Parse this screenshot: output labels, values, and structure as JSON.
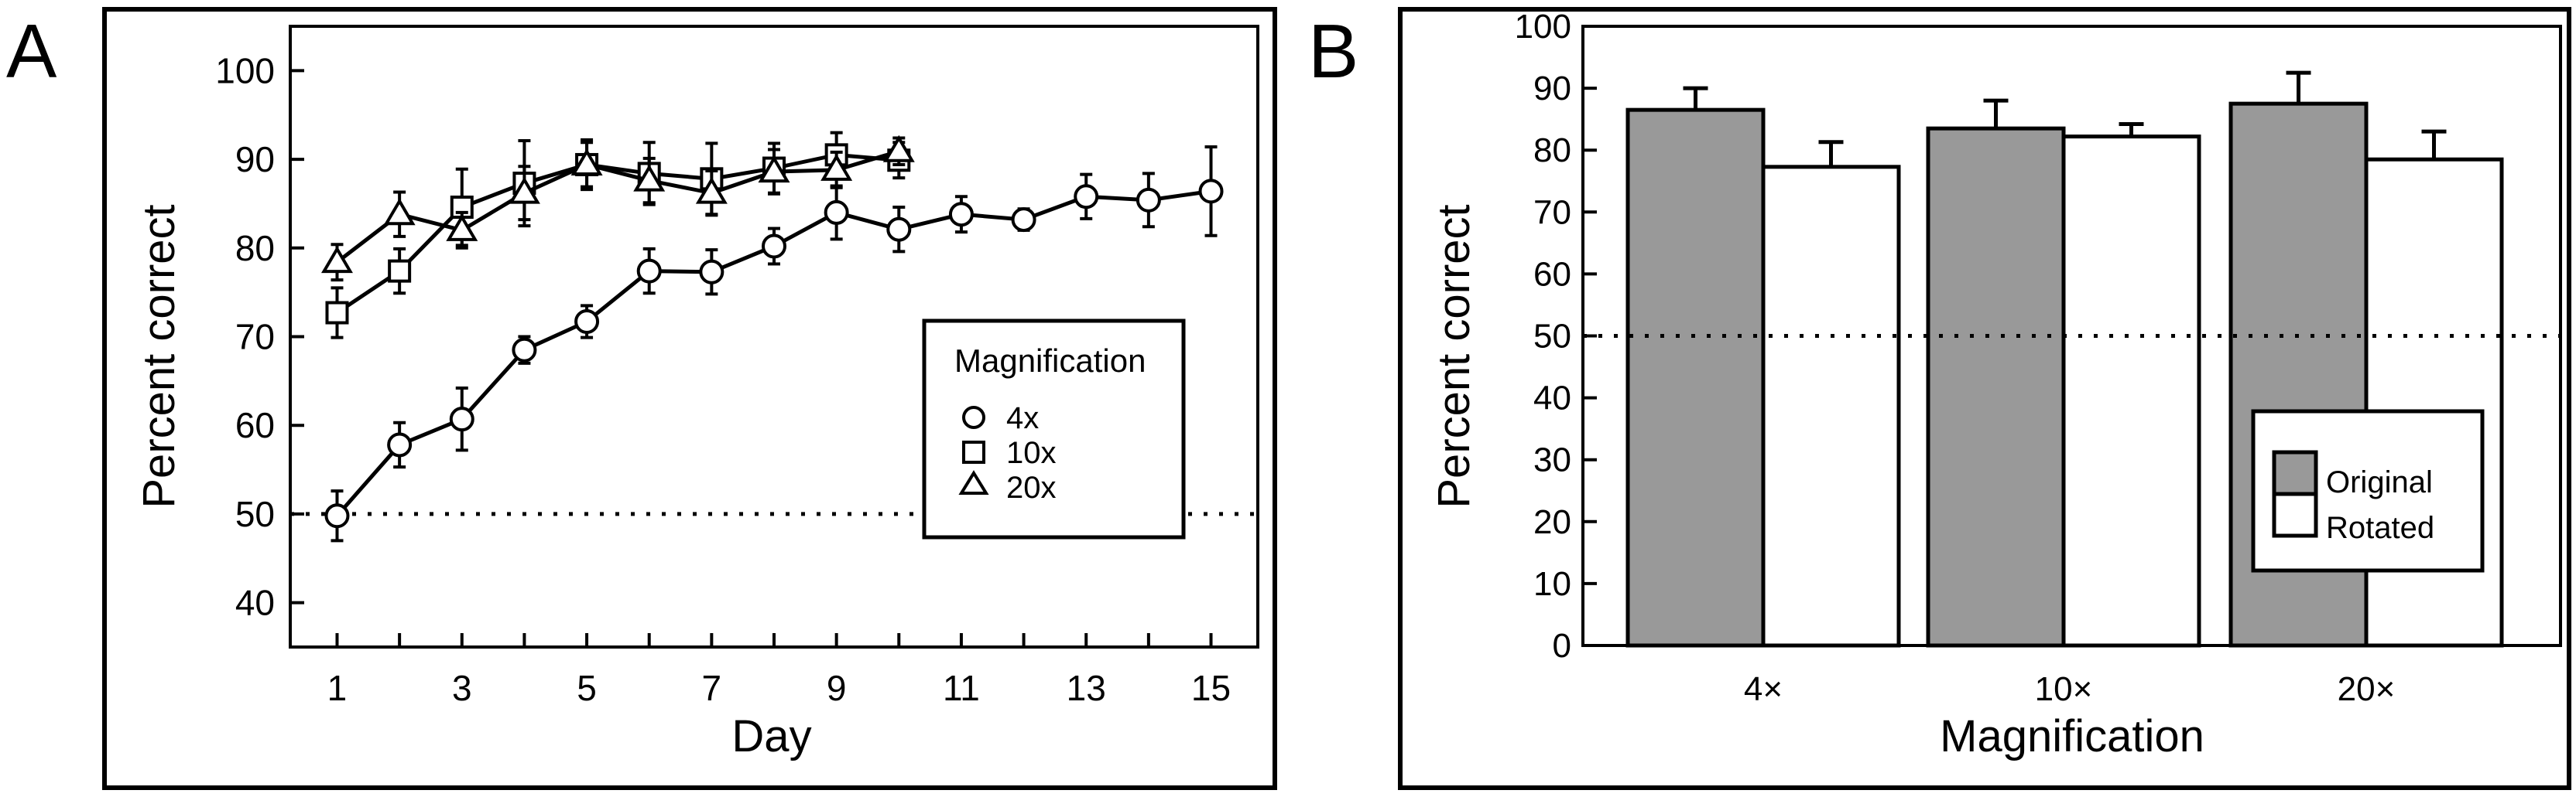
{
  "chart_data": [
    {
      "panel_label": "A",
      "type": "line",
      "xlabel": "Day",
      "ylabel": "Percent correct",
      "xlim": [
        0.25,
        15.75
      ],
      "ylim": [
        35,
        105
      ],
      "xticks": [
        1,
        3,
        5,
        7,
        9,
        11,
        13,
        15
      ],
      "yticks": [
        40,
        50,
        60,
        70,
        80,
        90,
        100
      ],
      "reference_line": 50,
      "legend": {
        "title": "Magnification",
        "placement": "center-right"
      },
      "series": [
        {
          "name": "4x",
          "marker": "circle",
          "x": [
            1,
            2,
            3,
            4,
            5,
            6,
            7,
            8,
            9,
            10,
            11,
            12,
            13,
            14,
            15
          ],
          "y": [
            49.8,
            57.8,
            60.7,
            68.5,
            71.7,
            77.4,
            77.3,
            80.2,
            84.0,
            82.1,
            83.8,
            83.2,
            85.8,
            85.4,
            86.4
          ],
          "err": [
            2.8,
            2.5,
            3.5,
            1.5,
            1.8,
            2.5,
            2.5,
            2.0,
            3.0,
            2.5,
            2.0,
            1.2,
            2.5,
            3.0,
            5.0
          ]
        },
        {
          "name": "10x",
          "marker": "square",
          "x": [
            1,
            2,
            3,
            4,
            5,
            6,
            7,
            8,
            9,
            10
          ],
          "y": [
            72.7,
            77.4,
            84.6,
            87.3,
            89.4,
            88.4,
            87.8,
            89.0,
            90.5,
            89.9
          ],
          "err": [
            2.8,
            2.5,
            4.3,
            4.8,
            2.8,
            3.5,
            4.0,
            2.8,
            2.5,
            2.0
          ]
        },
        {
          "name": "20x",
          "marker": "triangle",
          "x": [
            1,
            2,
            3,
            4,
            5,
            6,
            7,
            8,
            9,
            10
          ],
          "y": [
            78.4,
            83.8,
            82.0,
            86.2,
            89.4,
            87.6,
            86.2,
            88.6,
            88.8,
            90.9
          ],
          "err": [
            2.0,
            2.5,
            2.0,
            3.0,
            2.5,
            2.5,
            2.5,
            2.5,
            2.0,
            1.5
          ]
        }
      ]
    },
    {
      "panel_label": "B",
      "type": "bar",
      "xlabel": "Magnification",
      "ylabel": "Percent correct",
      "ylim": [
        0,
        100
      ],
      "yticks": [
        0,
        10,
        20,
        30,
        40,
        50,
        60,
        70,
        80,
        90,
        100
      ],
      "reference_line": 50,
      "categories": [
        "4×",
        "10×",
        "20×"
      ],
      "legend": {
        "placement": "bottom-right"
      },
      "series": [
        {
          "name": "Original",
          "color": "#999999",
          "values": [
            86.5,
            83.5,
            87.5
          ],
          "err": [
            3.5,
            4.5,
            5.0
          ]
        },
        {
          "name": "Rotated",
          "color": "#ffffff",
          "values": [
            77.3,
            82.2,
            78.5
          ],
          "err": [
            4.0,
            2.0,
            4.5
          ]
        }
      ]
    }
  ]
}
